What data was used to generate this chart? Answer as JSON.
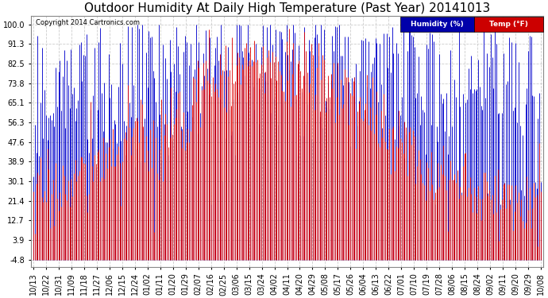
{
  "title": "Outdoor Humidity At Daily High Temperature (Past Year) 20141013",
  "copyright": "Copyright 2014 Cartronics.com",
  "legend_humidity": "Humidity (%)",
  "legend_temp": "Temp (°F)",
  "yticks": [
    100.0,
    91.3,
    82.5,
    73.8,
    65.1,
    56.3,
    47.6,
    38.9,
    30.1,
    21.4,
    12.7,
    3.9,
    -4.8
  ],
  "ylim": [
    -8,
    104
  ],
  "background_color": "#ffffff",
  "plot_bg_color": "#ffffff",
  "grid_color": "#cccccc",
  "humidity_color": "#0000cc",
  "temp_color": "#dd0000",
  "title_fontsize": 11,
  "tick_fontsize": 7,
  "xtick_labels": [
    "10/13",
    "10/22",
    "10/31",
    "11/09",
    "11/18",
    "11/27",
    "12/06",
    "12/15",
    "12/24",
    "01/02",
    "01/11",
    "01/20",
    "01/29",
    "02/07",
    "02/16",
    "02/25",
    "03/06",
    "03/15",
    "03/24",
    "04/02",
    "04/11",
    "04/20",
    "04/29",
    "05/08",
    "05/17",
    "05/26",
    "06/04",
    "06/13",
    "06/22",
    "07/01",
    "07/10",
    "07/19",
    "07/28",
    "08/06",
    "08/15",
    "08/24",
    "09/02",
    "09/11",
    "09/20",
    "09/29",
    "10/08"
  ],
  "num_days": 366,
  "baseline": -4.8
}
